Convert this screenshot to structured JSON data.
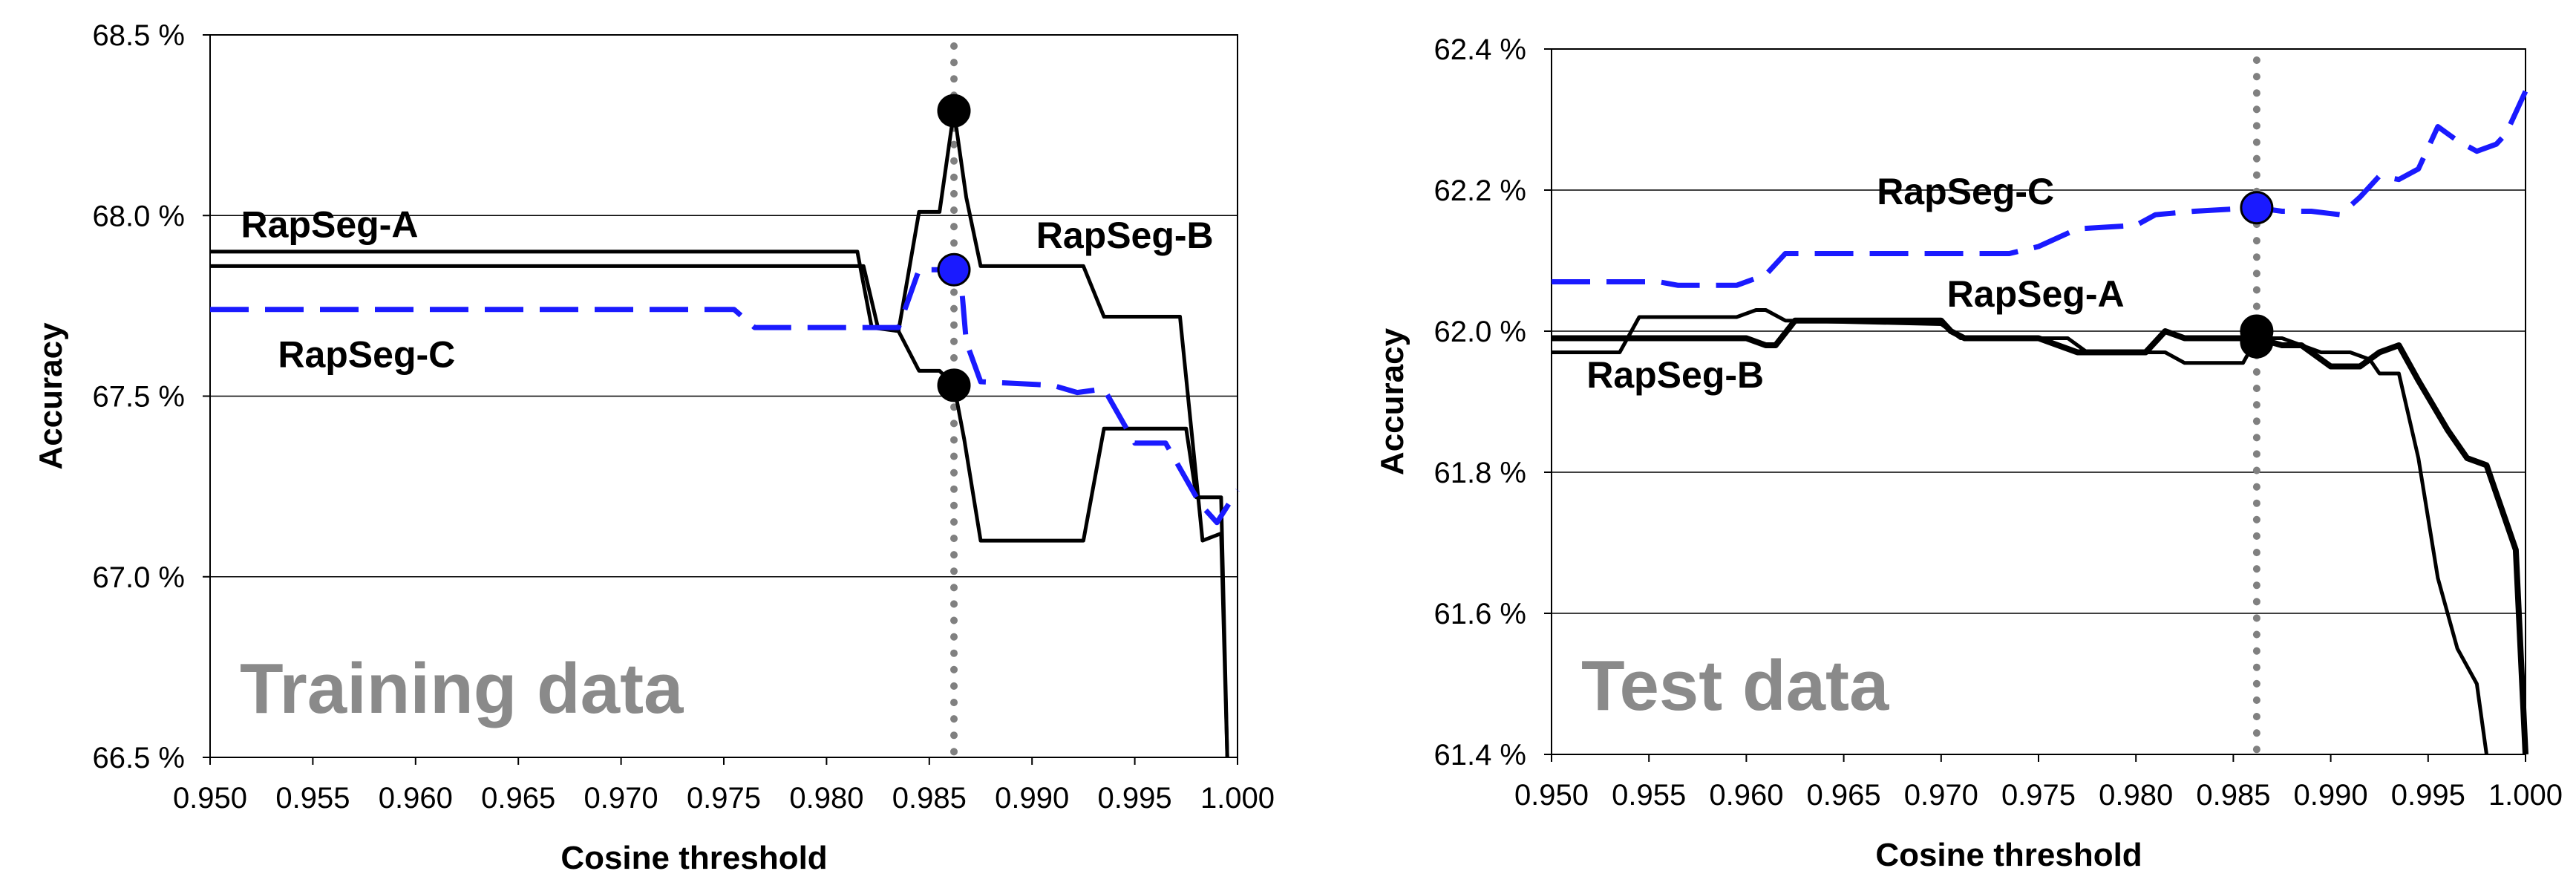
{
  "chart_data": [
    {
      "type": "line",
      "watermark": "Training data",
      "xlabel": "Cosine threshold",
      "ylabel": "Accuracy",
      "xlim": [
        0.95,
        1.0
      ],
      "ylim": [
        66.5,
        68.5
      ],
      "x_ticks": [
        0.95,
        0.955,
        0.96,
        0.965,
        0.97,
        0.975,
        0.98,
        0.985,
        0.99,
        0.995,
        1.0
      ],
      "x_tick_labels": [
        "0.950",
        "0.955",
        "0.960",
        "0.965",
        "0.970",
        "0.975",
        "0.980",
        "0.985",
        "0.990",
        "0.995",
        "1.000"
      ],
      "y_ticks": [
        66.5,
        67.0,
        67.5,
        68.0,
        68.5
      ],
      "y_tick_labels": [
        "66.5 %",
        "67.0 %",
        "67.5 %",
        "68.0 %",
        "68.5 %"
      ],
      "gridlines": [
        67.0,
        67.5,
        68.0
      ],
      "vline": 0.9862,
      "series": [
        {
          "name": "RapSeg-A",
          "color": "#000000",
          "style": "solid",
          "points": [
            [
              0.95,
              67.9
            ],
            [
              0.9815,
              67.9
            ],
            [
              0.9822,
              67.69
            ],
            [
              0.9835,
              67.68
            ],
            [
              0.9845,
              67.57
            ],
            [
              0.9855,
              67.57
            ],
            [
              0.9862,
              67.53
            ],
            [
              0.9867,
              67.38
            ],
            [
              0.9875,
              67.1
            ],
            [
              0.9925,
              67.1
            ],
            [
              0.9935,
              67.41
            ],
            [
              0.9975,
              67.41
            ],
            [
              0.998,
              67.22
            ],
            [
              0.9992,
              67.22
            ],
            [
              0.9995,
              66.5
            ]
          ]
        },
        {
          "name": "RapSeg-B",
          "color": "#000000",
          "style": "solid",
          "points": [
            [
              0.95,
              67.86
            ],
            [
              0.9818,
              67.86
            ],
            [
              0.9825,
              67.69
            ],
            [
              0.9835,
              67.68
            ],
            [
              0.9845,
              68.01
            ],
            [
              0.9855,
              68.01
            ],
            [
              0.9862,
              68.29
            ],
            [
              0.9868,
              68.05
            ],
            [
              0.9875,
              67.86
            ],
            [
              0.9925,
              67.86
            ],
            [
              0.9935,
              67.72
            ],
            [
              0.9972,
              67.72
            ],
            [
              0.9983,
              67.1
            ],
            [
              0.9992,
              67.12
            ],
            [
              0.9995,
              66.5
            ]
          ]
        },
        {
          "name": "RapSeg-C",
          "color": "#1a1aff",
          "style": "dashed",
          "points": [
            [
              0.95,
              67.74
            ],
            [
              0.9755,
              67.74
            ],
            [
              0.9765,
              67.69
            ],
            [
              0.9835,
              67.69
            ],
            [
              0.9845,
              67.85
            ],
            [
              0.9862,
              67.85
            ],
            [
              0.9865,
              67.85
            ],
            [
              0.9868,
              67.65
            ],
            [
              0.9875,
              67.54
            ],
            [
              0.991,
              67.53
            ],
            [
              0.9922,
              67.51
            ],
            [
              0.9935,
              67.52
            ],
            [
              0.995,
              67.37
            ],
            [
              0.9965,
              67.37
            ],
            [
              0.9982,
              67.2
            ],
            [
              0.999,
              67.15
            ],
            [
              1.0,
              67.24
            ]
          ]
        }
      ],
      "markers": [
        {
          "x": 0.9862,
          "y": 68.29,
          "color": "#000000"
        },
        {
          "x": 0.9862,
          "y": 67.85,
          "color": "#1a1aff"
        },
        {
          "x": 0.9862,
          "y": 67.53,
          "color": "#000000"
        }
      ],
      "labels": [
        {
          "text": "RapSeg-A",
          "x": 0.9515,
          "y": 67.94
        },
        {
          "text": "RapSeg-B",
          "x": 0.9902,
          "y": 67.91
        },
        {
          "text": "RapSeg-C",
          "x": 0.9533,
          "y": 67.58
        }
      ]
    },
    {
      "type": "line",
      "watermark": "Test data",
      "xlabel": "Cosine threshold",
      "ylabel": "Accuracy",
      "xlim": [
        0.95,
        1.0
      ],
      "ylim": [
        61.4,
        62.4
      ],
      "x_ticks": [
        0.95,
        0.955,
        0.96,
        0.965,
        0.97,
        0.975,
        0.98,
        0.985,
        0.99,
        0.995,
        1.0
      ],
      "x_tick_labels": [
        "0.950",
        "0.955",
        "0.960",
        "0.965",
        "0.970",
        "0.975",
        "0.980",
        "0.985",
        "0.990",
        "0.995",
        "1.000"
      ],
      "y_ticks": [
        61.4,
        61.6,
        61.8,
        62.0,
        62.2,
        62.4
      ],
      "y_tick_labels": [
        "61.4 %",
        "61.6 %",
        "61.8 %",
        "62.0 %",
        "62.2 %",
        "62.4 %"
      ],
      "gridlines": [
        61.6,
        61.8,
        62.0,
        62.2
      ],
      "vline": 0.9862,
      "series": [
        {
          "name": "RapSeg-A",
          "color": "#000000",
          "style": "thick",
          "points": [
            [
              0.95,
              61.99
            ],
            [
              0.96,
              61.99
            ],
            [
              0.961,
              61.98
            ],
            [
              0.9615,
              61.98
            ],
            [
              0.9625,
              62.015
            ],
            [
              0.97,
              62.015
            ],
            [
              0.9705,
              62.0
            ],
            [
              0.9712,
              61.99
            ],
            [
              0.975,
              61.99
            ],
            [
              0.977,
              61.97
            ],
            [
              0.9805,
              61.97
            ],
            [
              0.9815,
              62.0
            ],
            [
              0.9825,
              61.99
            ],
            [
              0.9855,
              61.99
            ],
            [
              0.9862,
              61.99
            ],
            [
              0.9875,
              61.98
            ],
            [
              0.9885,
              61.98
            ],
            [
              0.99,
              61.95
            ],
            [
              0.9915,
              61.95
            ],
            [
              0.9925,
              61.97
            ],
            [
              0.9935,
              61.98
            ],
            [
              0.9945,
              61.93
            ],
            [
              0.996,
              61.86
            ],
            [
              0.997,
              61.82
            ],
            [
              0.998,
              61.81
            ],
            [
              0.9985,
              61.77
            ],
            [
              0.999,
              61.73
            ],
            [
              0.9995,
              61.69
            ],
            [
              1.0,
              61.4
            ]
          ]
        },
        {
          "name": "RapSeg-B",
          "color": "#000000",
          "style": "solid",
          "points": [
            [
              0.95,
              61.97
            ],
            [
              0.9535,
              61.97
            ],
            [
              0.9545,
              62.02
            ],
            [
              0.9595,
              62.02
            ],
            [
              0.9605,
              62.03
            ],
            [
              0.961,
              62.03
            ],
            [
              0.962,
              62.015
            ],
            [
              0.97,
              62.01
            ],
            [
              0.971,
              61.99
            ],
            [
              0.9765,
              61.99
            ],
            [
              0.9775,
              61.97
            ],
            [
              0.9815,
              61.97
            ],
            [
              0.9825,
              61.955
            ],
            [
              0.9855,
              61.955
            ],
            [
              0.9862,
              61.99
            ],
            [
              0.9875,
              61.99
            ],
            [
              0.9895,
              61.97
            ],
            [
              0.991,
              61.97
            ],
            [
              0.992,
              61.96
            ],
            [
              0.9925,
              61.94
            ],
            [
              0.9935,
              61.94
            ],
            [
              0.9945,
              61.82
            ],
            [
              0.9955,
              61.65
            ],
            [
              0.9965,
              61.55
            ],
            [
              0.9975,
              61.5
            ],
            [
              0.998,
              61.4
            ]
          ]
        },
        {
          "name": "RapSeg-C",
          "color": "#1a1aff",
          "style": "dashed",
          "points": [
            [
              0.95,
              62.07
            ],
            [
              0.9555,
              62.07
            ],
            [
              0.9565,
              62.065
            ],
            [
              0.9595,
              62.065
            ],
            [
              0.961,
              62.08
            ],
            [
              0.962,
              62.11
            ],
            [
              0.9735,
              62.11
            ],
            [
              0.975,
              62.12
            ],
            [
              0.977,
              62.145
            ],
            [
              0.98,
              62.15
            ],
            [
              0.981,
              62.165
            ],
            [
              0.983,
              62.17
            ],
            [
              0.9862,
              62.175
            ],
            [
              0.9875,
              62.17
            ],
            [
              0.989,
              62.17
            ],
            [
              0.9905,
              62.165
            ],
            [
              0.9915,
              62.19
            ],
            [
              0.9925,
              62.22
            ],
            [
              0.9935,
              62.215
            ],
            [
              0.9945,
              62.23
            ],
            [
              0.9955,
              62.29
            ],
            [
              0.9965,
              62.27
            ],
            [
              0.9975,
              62.255
            ],
            [
              0.9985,
              62.265
            ],
            [
              0.999,
              62.28
            ],
            [
              1.0,
              62.34
            ]
          ]
        }
      ],
      "markers": [
        {
          "x": 0.9862,
          "y": 62.175,
          "color": "#1a1aff"
        },
        {
          "x": 0.9862,
          "y": 62.0,
          "color": "#000000"
        },
        {
          "x": 0.9862,
          "y": 61.985,
          "color": "#000000"
        }
      ],
      "labels": [
        {
          "text": "RapSeg-C",
          "x": 0.9667,
          "y": 62.18
        },
        {
          "text": "RapSeg-A",
          "x": 0.9703,
          "y": 62.035
        },
        {
          "text": "RapSeg-B",
          "x": 0.9518,
          "y": 61.92
        }
      ]
    }
  ]
}
